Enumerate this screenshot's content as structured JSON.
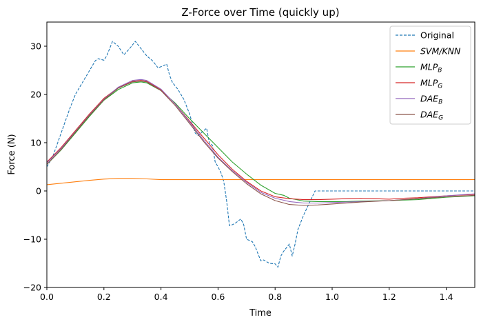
{
  "chart_data": {
    "type": "line",
    "title": "Z-Force over Time (quickly  up)",
    "xlabel": "Time",
    "ylabel": "Force (N)",
    "xlim": [
      0,
      1.5
    ],
    "ylim": [
      -20,
      35
    ],
    "xticks": [
      0.0,
      0.2,
      0.4,
      0.6,
      0.8,
      1.0,
      1.2,
      1.4
    ],
    "xtick_labels": [
      "0.0",
      "0.2",
      "0.4",
      "0.6",
      "0.8",
      "1.0",
      "1.2",
      "1.4"
    ],
    "yticks": [
      -20,
      -10,
      0,
      10,
      20,
      30
    ],
    "ytick_labels": [
      "−20",
      "−10",
      "0",
      "10",
      "20",
      "30"
    ],
    "grid": false,
    "legend_position": "top-right",
    "series": [
      {
        "name": "Original",
        "legend": {
          "base": "Original",
          "sub": "",
          "italic": false
        },
        "color": "#1f77b4",
        "dashed": true,
        "x": [
          0,
          0.02,
          0.05,
          0.08,
          0.1,
          0.13,
          0.15,
          0.17,
          0.18,
          0.2,
          0.21,
          0.23,
          0.25,
          0.27,
          0.29,
          0.31,
          0.33,
          0.35,
          0.37,
          0.39,
          0.41,
          0.42,
          0.43,
          0.44,
          0.46,
          0.48,
          0.5,
          0.52,
          0.53,
          0.56,
          0.57,
          0.58,
          0.59,
          0.6,
          0.61,
          0.62,
          0.63,
          0.64,
          0.65,
          0.66,
          0.68,
          0.69,
          0.7,
          0.72,
          0.73,
          0.75,
          0.76,
          0.78,
          0.8,
          0.81,
          0.82,
          0.83,
          0.85,
          0.86,
          0.87,
          0.88,
          0.9,
          0.92,
          0.94,
          0.96,
          1.0,
          1.2,
          1.5
        ],
        "y": [
          5,
          7,
          12,
          17,
          20,
          23,
          25,
          27,
          27.4,
          27.1,
          28,
          31,
          30,
          28.2,
          29.5,
          31,
          29.5,
          28,
          27,
          25.5,
          26,
          26.3,
          24,
          22.5,
          21,
          19,
          16,
          12,
          11.5,
          13,
          9.8,
          9.5,
          6,
          5,
          3.8,
          2,
          -2,
          -7.2,
          -7,
          -6.7,
          -5.8,
          -7,
          -10,
          -10.5,
          -11.5,
          -14.5,
          -14.3,
          -15,
          -15.1,
          -15.8,
          -13.5,
          -12.5,
          -11,
          -13.5,
          -11,
          -8,
          -5,
          -2.5,
          0,
          0,
          0,
          0,
          0
        ]
      },
      {
        "name": "SVM/KNN",
        "legend": {
          "base": "SVM/KNN",
          "sub": "",
          "italic": true
        },
        "color": "#ff7f0e",
        "dashed": false,
        "x": [
          0,
          0.05,
          0.1,
          0.15,
          0.2,
          0.25,
          0.3,
          0.35,
          0.4,
          0.5,
          0.6,
          1.0,
          1.5
        ],
        "y": [
          1.3,
          1.6,
          1.9,
          2.2,
          2.45,
          2.6,
          2.6,
          2.5,
          2.35,
          2.35,
          2.35,
          2.35,
          2.35
        ]
      },
      {
        "name": "MLP_B",
        "legend": {
          "base": "MLP",
          "sub": "B",
          "italic": true
        },
        "color": "#2ca02c",
        "dashed": false,
        "x": [
          0,
          0.05,
          0.1,
          0.15,
          0.2,
          0.25,
          0.3,
          0.33,
          0.35,
          0.4,
          0.45,
          0.5,
          0.55,
          0.6,
          0.65,
          0.7,
          0.75,
          0.8,
          0.83,
          0.85,
          0.9,
          0.95,
          1.0,
          1.05,
          1.1,
          1.2,
          1.3,
          1.4,
          1.5
        ],
        "y": [
          5.5,
          8.5,
          12,
          15.5,
          18.8,
          21,
          22.4,
          22.6,
          22.4,
          20.8,
          18.2,
          15,
          12,
          9,
          6,
          3.5,
          1.2,
          -0.5,
          -0.9,
          -1.5,
          -2.1,
          -2.2,
          -2.2,
          -2.2,
          -2.1,
          -2,
          -1.8,
          -1.3,
          -1
        ]
      },
      {
        "name": "MLP_G",
        "legend": {
          "base": "MLP",
          "sub": "G",
          "italic": true
        },
        "color": "#d62728",
        "dashed": false,
        "x": [
          0,
          0.05,
          0.1,
          0.15,
          0.2,
          0.25,
          0.3,
          0.33,
          0.35,
          0.4,
          0.45,
          0.5,
          0.55,
          0.6,
          0.65,
          0.7,
          0.75,
          0.8,
          0.85,
          0.9,
          0.95,
          1.0,
          1.05,
          1.1,
          1.15,
          1.2,
          1.25,
          1.3,
          1.35,
          1.4,
          1.5
        ],
        "y": [
          6,
          9,
          12.5,
          16,
          19.2,
          21.4,
          22.7,
          22.9,
          22.7,
          21,
          18,
          14.5,
          11,
          7.5,
          4.5,
          2,
          0,
          -1.2,
          -1.6,
          -1.8,
          -1.8,
          -1.7,
          -1.6,
          -1.5,
          -1.6,
          -1.7,
          -1.5,
          -1.4,
          -1.2,
          -1,
          -0.7
        ]
      },
      {
        "name": "DAE_B",
        "legend": {
          "base": "DAE",
          "sub": "B",
          "italic": true
        },
        "color": "#9467bd",
        "dashed": false,
        "x": [
          0,
          0.05,
          0.1,
          0.15,
          0.2,
          0.25,
          0.3,
          0.33,
          0.35,
          0.4,
          0.45,
          0.5,
          0.55,
          0.6,
          0.65,
          0.7,
          0.75,
          0.8,
          0.85,
          0.9,
          0.95,
          1.0,
          1.1,
          1.2,
          1.3,
          1.4,
          1.5
        ],
        "y": [
          5.8,
          8.8,
          12.3,
          15.8,
          19,
          21.5,
          22.9,
          23.1,
          22.9,
          21.1,
          18,
          14.3,
          10.5,
          7,
          4.2,
          1.8,
          -0.3,
          -1.5,
          -2.2,
          -2.5,
          -2.5,
          -2.4,
          -2.2,
          -2,
          -1.6,
          -1,
          -0.6
        ]
      },
      {
        "name": "DAE_G",
        "legend": {
          "base": "DAE",
          "sub": "G",
          "italic": true
        },
        "color": "#8c564b",
        "dashed": false,
        "x": [
          0,
          0.05,
          0.1,
          0.15,
          0.2,
          0.25,
          0.3,
          0.33,
          0.35,
          0.4,
          0.45,
          0.5,
          0.55,
          0.6,
          0.65,
          0.7,
          0.75,
          0.8,
          0.85,
          0.9,
          0.95,
          1.0,
          1.1,
          1.2,
          1.3,
          1.4,
          1.5
        ],
        "y": [
          5.5,
          8.6,
          12.2,
          15.7,
          18.9,
          21.3,
          22.6,
          22.8,
          22.6,
          20.8,
          17.7,
          14,
          10.2,
          6.8,
          4,
          1.5,
          -0.6,
          -2,
          -2.8,
          -3,
          -2.9,
          -2.7,
          -2.3,
          -2,
          -1.6,
          -1.2,
          -0.9
        ]
      }
    ]
  }
}
